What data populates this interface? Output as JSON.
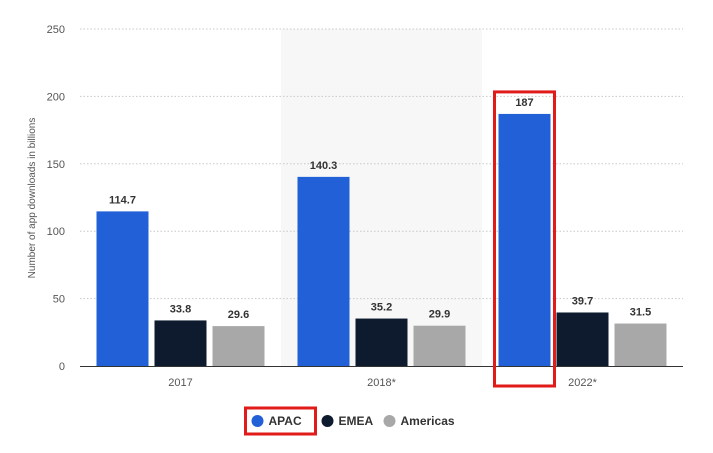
{
  "chart_data": {
    "type": "bar",
    "title": "",
    "xlabel": "",
    "ylabel": "Number of app downloads in billions",
    "categories": [
      "2017",
      "2018*",
      "2022*"
    ],
    "series": [
      {
        "name": "APAC",
        "values": [
          114.7,
          140.3,
          187
        ],
        "labels": [
          "114.7",
          "140.3",
          "187"
        ],
        "color": "#2160d6"
      },
      {
        "name": "EMEA",
        "values": [
          33.8,
          35.2,
          39.7
        ],
        "labels": [
          "33.8",
          "35.2",
          "39.7"
        ],
        "color": "#0e1b2e"
      },
      {
        "name": "Americas",
        "values": [
          29.6,
          29.9,
          31.5
        ],
        "labels": [
          "29.6",
          "29.9",
          "31.5"
        ],
        "color": "#a8a8a8"
      }
    ],
    "ylim": [
      0,
      250
    ],
    "yticks": [
      "0",
      "50",
      "100",
      "150",
      "200",
      "250"
    ],
    "grid": true,
    "legend_position": "bottom-center",
    "highlighted_category": "2018*",
    "annotations": {
      "highlight_box_color": "#e11a1a",
      "boxed_bar": "2022* APAC",
      "boxed_legend_entry": "APAC"
    }
  }
}
